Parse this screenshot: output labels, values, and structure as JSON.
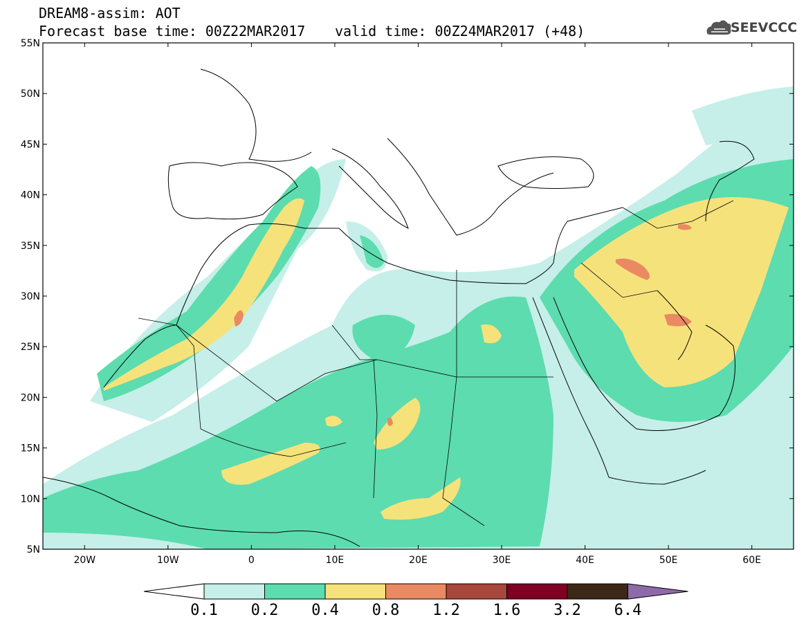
{
  "header": {
    "line1": "DREAM8-assim: AOT",
    "line2": "Forecast base time: 00Z22MAR2017",
    "valid": "valid time: 00Z24MAR2017 (+48)",
    "logo_text": "SEEVCCC"
  },
  "map": {
    "lat_labels": [
      "55N",
      "50N",
      "45N",
      "40N",
      "35N",
      "30N",
      "25N",
      "20N",
      "15N",
      "10N",
      "5N"
    ],
    "lon_labels": [
      "20W",
      "10W",
      "0",
      "10E",
      "20E",
      "30E",
      "40E",
      "50E",
      "60E"
    ],
    "extent": {
      "lon_min": -25,
      "lon_max": 65,
      "lat_min": 5,
      "lat_max": 55
    }
  },
  "colorbar": {
    "colors": [
      "#ffffff",
      "#c5efe8",
      "#5cdcaf",
      "#f6e27b",
      "#e98a62",
      "#a8473b",
      "#7e0022",
      "#3c2816",
      "#8f6aa8"
    ],
    "labels": [
      "0.1",
      "0.2",
      "0.4",
      "0.8",
      "1.2",
      "1.6",
      "3.2",
      "6.4"
    ]
  }
}
